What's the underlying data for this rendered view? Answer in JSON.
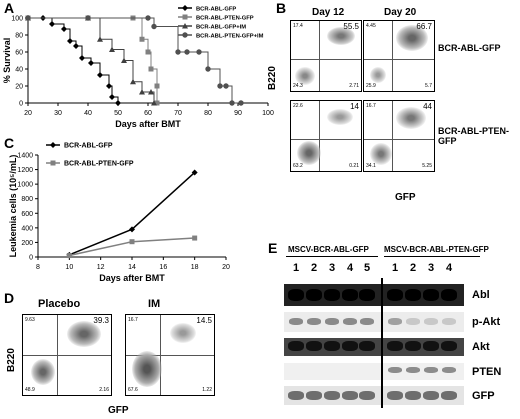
{
  "panel_letters": [
    "A",
    "B",
    "C",
    "D",
    "E"
  ],
  "chart_data": [
    {
      "panel": "A",
      "type": "line",
      "xlabel": "Days after BMT",
      "ylabel": "% Survival",
      "xlim": [
        20,
        100
      ],
      "ylim": [
        0,
        100
      ],
      "xticks": [
        "20",
        "30",
        "40",
        "50",
        "60",
        "70",
        "80",
        "90",
        "100"
      ],
      "yticks": [
        "0",
        "20",
        "40",
        "60",
        "80",
        "100"
      ],
      "legend_position": "top-right",
      "series": [
        {
          "name": "BCR-ABL-GFP",
          "color": "#000000",
          "marker": "diamond",
          "x": [
            20,
            25,
            28,
            32,
            34,
            36,
            38,
            41,
            44,
            47,
            48,
            50
          ],
          "y": [
            100,
            100,
            93,
            87,
            73,
            67,
            53,
            47,
            33,
            20,
            7,
            0
          ]
        },
        {
          "name": "BCR-ABL-PTEN-GFP",
          "color": "#808080",
          "marker": "square",
          "x": [
            20,
            40,
            55,
            58,
            60,
            61,
            63,
            63
          ],
          "y": [
            100,
            100,
            100,
            75,
            60,
            40,
            20,
            0
          ]
        },
        {
          "name": "BCR-ABL-GFP+IM",
          "color": "#404040",
          "marker": "triangle",
          "x": [
            20,
            40,
            44,
            48,
            52,
            55,
            58,
            61,
            62
          ],
          "y": [
            100,
            100,
            75,
            63,
            50,
            25,
            13,
            13,
            0
          ]
        },
        {
          "name": "BCR-ABL-PTEN-GFP+IM",
          "color": "#505050",
          "marker": "circle",
          "x": [
            20,
            40,
            60,
            62,
            70,
            73,
            77,
            80,
            84,
            86,
            88,
            91
          ],
          "y": [
            100,
            100,
            100,
            90,
            60,
            60,
            60,
            40,
            20,
            20,
            0,
            0
          ]
        }
      ]
    },
    {
      "panel": "C",
      "type": "line",
      "xlabel": "Days after BMT",
      "ylabel": "Leukemia cells (10⁵/mL)",
      "xlim": [
        8,
        20
      ],
      "ylim": [
        0,
        1400
      ],
      "xticks": [
        "8",
        "10",
        "12",
        "14",
        "16",
        "18",
        "20"
      ],
      "yticks": [
        "0",
        "200",
        "400",
        "600",
        "800",
        "1000",
        "1200",
        "1400"
      ],
      "legend_position": "top-left",
      "series": [
        {
          "name": "BCR-ABL-GFP",
          "color": "#000000",
          "marker": "diamond",
          "x": [
            10,
            14,
            18
          ],
          "y": [
            30,
            380,
            1160
          ]
        },
        {
          "name": "BCR-ABL-PTEN-GFP",
          "color": "#808080",
          "marker": "square",
          "x": [
            10,
            14,
            18
          ],
          "y": [
            20,
            210,
            260
          ]
        }
      ]
    }
  ],
  "panelB": {
    "col_titles": [
      "Day 12",
      "Day 20"
    ],
    "row_labels": [
      "BCR-ABL-GFP",
      "BCR-ABL-PTEN-GFP"
    ],
    "ylabel": "B220",
    "xlabel": "GFP",
    "plots": [
      {
        "ul": "17.4",
        "ur": "55.5",
        "ll": "24.3",
        "lr": "2.71"
      },
      {
        "ul": "4.45",
        "ur": "66.7",
        "ll": "25.9",
        "lr": "5.7"
      },
      {
        "ul": "22.6",
        "ur": "14",
        "ll": "63.2",
        "lr": "0.21"
      },
      {
        "ul": "16.7",
        "ur": "44",
        "ll": "34.1",
        "lr": "5.25"
      }
    ]
  },
  "panelD": {
    "titles": [
      "Placebo",
      "IM"
    ],
    "ylabel": "B220",
    "xlabel": "GFP",
    "plots": [
      {
        "ul": "9.63",
        "ur": "39.3",
        "ll": "48.9",
        "lr": "2.16"
      },
      {
        "ul": "16.7",
        "ur": "14.5",
        "ll": "67.6",
        "lr": "1.22"
      }
    ]
  },
  "panelE": {
    "group_titles": [
      "MSCV-BCR-ABL-GFP",
      "MSCV-BCR-ABL-PTEN-GFP"
    ],
    "lanes_left": [
      "1",
      "2",
      "3",
      "4",
      "5"
    ],
    "lanes_right": [
      "1",
      "2",
      "3",
      "4"
    ],
    "blot_labels": [
      "Abl",
      "p-Akt",
      "Akt",
      "PTEN",
      "GFP"
    ]
  }
}
